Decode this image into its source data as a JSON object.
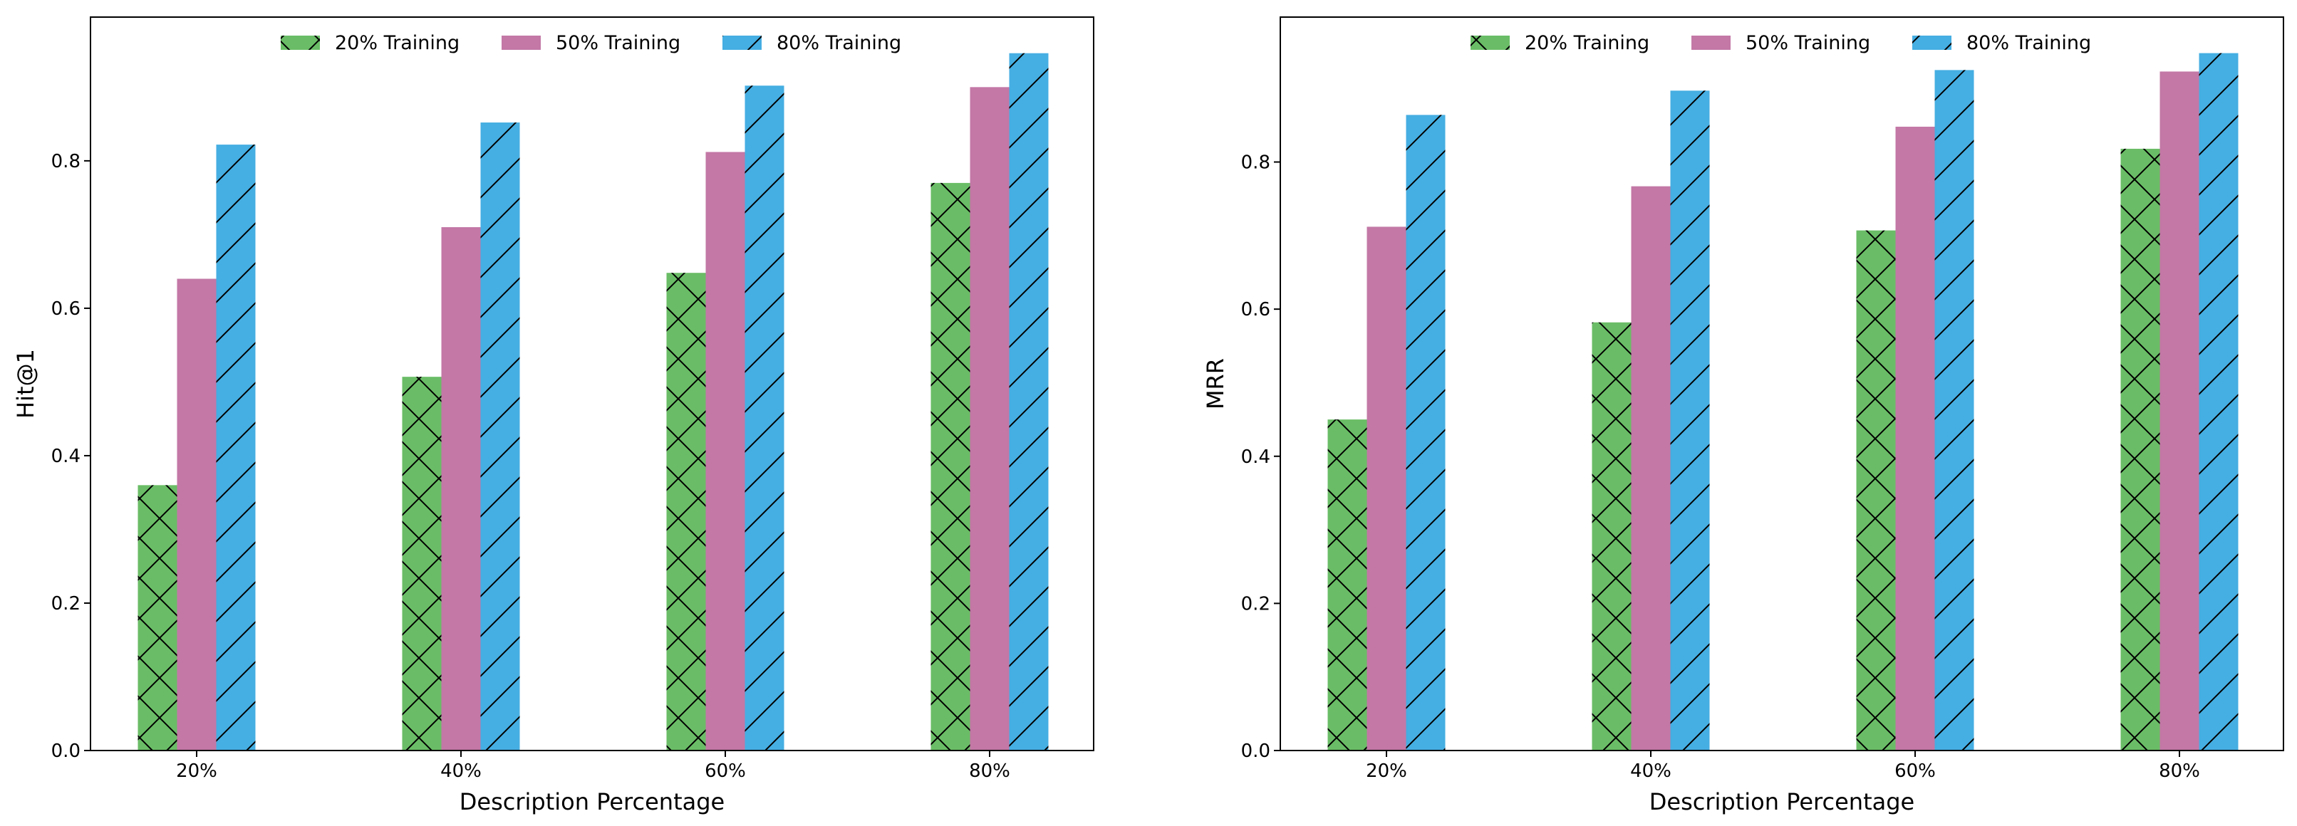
{
  "chart_data": [
    {
      "type": "bar",
      "title": "",
      "xlabel": "Description Percentage",
      "ylabel": "Hit@1",
      "categories": [
        "20%",
        "40%",
        "60%",
        "80%"
      ],
      "ylim": [
        0,
        0.995
      ],
      "yticks": [
        0.0,
        0.2,
        0.4,
        0.6,
        0.8
      ],
      "ytick_labels": [
        "0.0",
        "0.2",
        "0.4",
        "0.6",
        "0.8"
      ],
      "grid": false,
      "legend_position": "top-center",
      "series": [
        {
          "name": "20% Training",
          "color": "#6abd66",
          "hatch": "cross",
          "values": [
            0.36,
            0.507,
            0.648,
            0.77
          ]
        },
        {
          "name": "50% Training",
          "color": "#c378a6",
          "hatch": "none",
          "values": [
            0.64,
            0.71,
            0.812,
            0.9
          ]
        },
        {
          "name": "80% Training",
          "color": "#45aee2",
          "hatch": "slash",
          "values": [
            0.822,
            0.852,
            0.902,
            0.946
          ]
        }
      ]
    },
    {
      "type": "bar",
      "title": "",
      "xlabel": "Description Percentage",
      "ylabel": "MRR",
      "categories": [
        "20%",
        "40%",
        "60%",
        "80%"
      ],
      "ylim": [
        0,
        0.997
      ],
      "yticks": [
        0.0,
        0.2,
        0.4,
        0.6,
        0.8
      ],
      "ytick_labels": [
        "0.0",
        "0.2",
        "0.4",
        "0.6",
        "0.8"
      ],
      "grid": false,
      "legend_position": "top-center",
      "series": [
        {
          "name": "20% Training",
          "color": "#6abd66",
          "hatch": "cross",
          "values": [
            0.45,
            0.582,
            0.707,
            0.818
          ]
        },
        {
          "name": "50% Training",
          "color": "#c378a6",
          "hatch": "none",
          "values": [
            0.712,
            0.767,
            0.848,
            0.923
          ]
        },
        {
          "name": "80% Training",
          "color": "#45aee2",
          "hatch": "slash",
          "values": [
            0.864,
            0.897,
            0.925,
            0.948
          ]
        }
      ]
    }
  ]
}
